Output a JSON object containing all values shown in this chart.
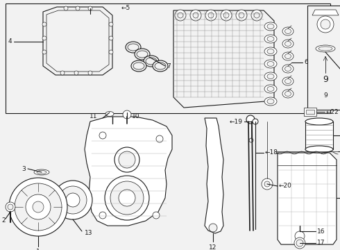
{
  "bg_color": "#f2f2f2",
  "line_color": "#1a1a1a",
  "white": "#ffffff",
  "fig_width": 4.9,
  "fig_height": 3.6,
  "dpi": 100
}
